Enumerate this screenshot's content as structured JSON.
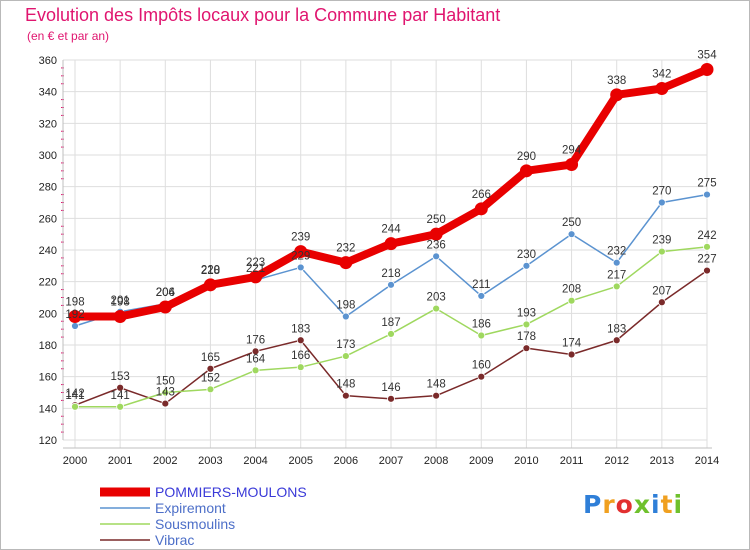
{
  "header": {
    "title": "Evolution des Impôts locaux pour la Commune par Habitant",
    "subtitle": "(en € et par an)"
  },
  "logo": {
    "text": "Proxiti",
    "letters": [
      "P",
      "r",
      "o",
      "x",
      "i",
      "t",
      "i"
    ],
    "colors": [
      "#2f7fd8",
      "#f0a020",
      "#e23030",
      "#6fc12d",
      "#2f7fd8",
      "#f0a020",
      "#6fc12d"
    ]
  },
  "chart_data": {
    "type": "line",
    "title": "Evolution des Impôts locaux pour la Commune par Habitant",
    "subtitle": "(en € et par an)",
    "xlabel": "",
    "ylabel": "",
    "categories": [
      "2000",
      "2001",
      "2002",
      "2003",
      "2004",
      "2005",
      "2006",
      "2007",
      "2008",
      "2009",
      "2010",
      "2011",
      "2012",
      "2013",
      "2014"
    ],
    "ylim": [
      120,
      360
    ],
    "yticks": [
      120,
      140,
      160,
      180,
      200,
      220,
      240,
      260,
      280,
      300,
      320,
      340,
      360
    ],
    "grid": true,
    "legend_position": "bottom-left",
    "series": [
      {
        "name": "POMMIERS-MOULONS",
        "color": "#e80000",
        "values": [
          198,
          198,
          204,
          218,
          223,
          239,
          232,
          244,
          250,
          266,
          290,
          294,
          338,
          342,
          354
        ]
      },
      {
        "name": "Expiremont",
        "color": "#5b93d0",
        "values": [
          192,
          201,
          206,
          220,
          221,
          229,
          198,
          218,
          236,
          211,
          230,
          250,
          232,
          270,
          275
        ]
      },
      {
        "name": "Sousmoulins",
        "color": "#9fd85f",
        "values": [
          141,
          141,
          150,
          152,
          164,
          166,
          173,
          187,
          203,
          186,
          193,
          208,
          217,
          239,
          242
        ]
      },
      {
        "name": "Vibrac",
        "color": "#7a2a2a",
        "values": [
          142,
          153,
          143,
          165,
          176,
          183,
          148,
          146,
          148,
          160,
          178,
          174,
          183,
          207,
          227
        ]
      }
    ]
  }
}
